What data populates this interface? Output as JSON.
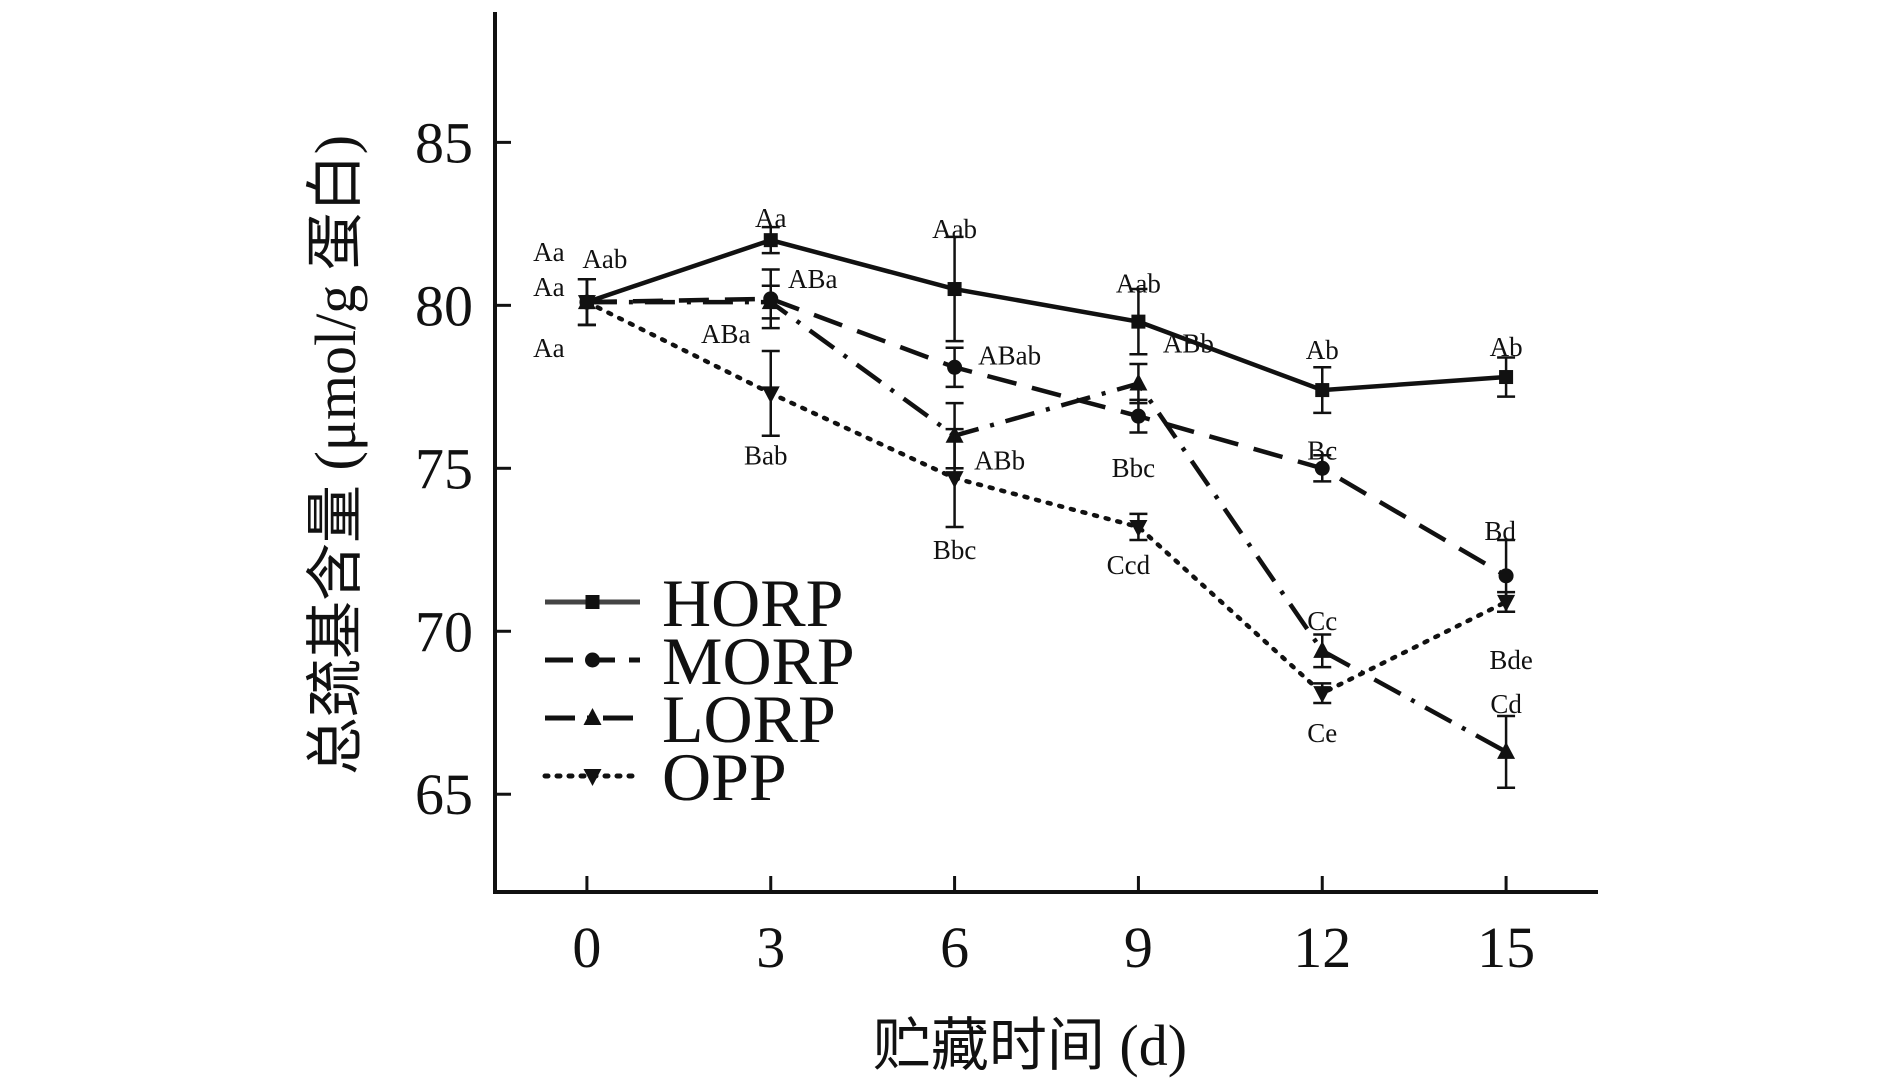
{
  "chart_data": {
    "type": "line",
    "title": "",
    "xlabel": "贮藏时间 (d)",
    "ylabel": "总巯基含量 (μmol/g 蛋白)",
    "x": [
      0,
      3,
      6,
      9,
      12,
      15
    ],
    "xlim": [
      -1.5,
      16.5
    ],
    "ylim": [
      62,
      89
    ],
    "yticks": [
      65,
      70,
      75,
      80,
      85
    ],
    "grid": false,
    "legend_position": "lower-left",
    "series": [
      {
        "name": "HORP",
        "line_style": "solid",
        "marker": "square",
        "values": [
          80.1,
          82.0,
          80.5,
          79.5,
          77.4,
          77.8
        ],
        "errors": [
          0.7,
          0.4,
          1.6,
          1.0,
          0.7,
          0.6
        ],
        "labels": [
          "Aa",
          "Aa",
          "Aab",
          "Aab",
          "Ab",
          "Ab"
        ]
      },
      {
        "name": "MORP",
        "line_style": "dashed",
        "marker": "circle",
        "values": [
          80.1,
          80.2,
          78.1,
          76.6,
          75.0,
          71.7
        ],
        "errors": [
          0.7,
          0.9,
          0.6,
          0.5,
          0.4,
          1.1
        ],
        "labels": [
          "Aab",
          "ABa",
          "ABab",
          "Bbc",
          "Bc",
          "Bd"
        ]
      },
      {
        "name": "LORP",
        "line_style": "dash-dot",
        "marker": "triangle-up",
        "values": [
          80.1,
          80.1,
          76.0,
          77.6,
          69.4,
          66.3
        ],
        "errors": [
          0.7,
          0.5,
          1.0,
          0.6,
          0.5,
          1.1
        ],
        "labels": [
          "Aa",
          "ABa",
          "ABb",
          "ABb",
          "Cc",
          "Cd"
        ]
      },
      {
        "name": "OPP",
        "line_style": "dotted",
        "marker": "triangle-down",
        "values": [
          80.1,
          77.3,
          74.7,
          73.2,
          68.1,
          70.9
        ],
        "errors": [
          0.7,
          1.3,
          1.5,
          0.4,
          0.3,
          0.3
        ],
        "labels": [
          "Aa",
          "Bab",
          "Bbc",
          "Ccd",
          "Ce",
          "Bde"
        ]
      }
    ]
  }
}
